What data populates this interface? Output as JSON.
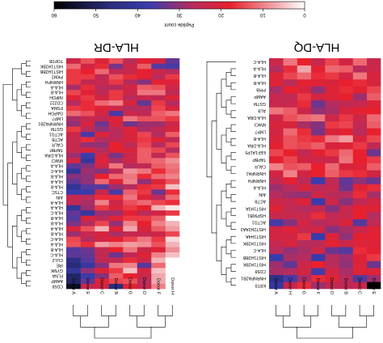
{
  "chart_data": [
    {
      "type": "heatmap",
      "title": "HLA-DR",
      "colorbar": {
        "label": "Peptide count",
        "ticks": [
          "0",
          "10",
          "20",
          "30",
          "40",
          "50",
          "60"
        ],
        "range": [
          0,
          60
        ],
        "colors": [
          "#ffffff",
          "#e8202d",
          "#3a3cae",
          "#000000"
        ]
      },
      "rows": [
        "CD58",
        "AAMP",
        "FLNA",
        "GYMK",
        "IRE",
        "CUL2",
        "HLA-C",
        "HLA-B",
        "HLA-A",
        "HLA-C",
        "HLA-B",
        "HLA-A",
        "HLA-B",
        "HLA-B",
        "HLA-C",
        "HLA-A",
        "HLA-A",
        "AIN",
        "CTSC",
        "HLA-B",
        "HLA-A",
        "HLA-B",
        "HLA-C",
        "HLA-A",
        "MWCI",
        "HLA-DRA",
        "TAPBP",
        "CALR",
        "ACTB",
        "ACTG1",
        "GSTM",
        "HNRNPA2B1",
        "LMP7",
        "GAPDH",
        "PSMA",
        "CD222",
        "IMPDH",
        "HLA-B",
        "HLA-A",
        "HNRNPH",
        "PKM2",
        "HIST1H2BB",
        "HIST1H2BK",
        "TOP2B"
      ],
      "columns": [
        "Donor H",
        "Donor F",
        "Donor D",
        "Donor G",
        "Donor B",
        "Donor C",
        "Donor E",
        "Donor A"
      ],
      "values": [
        [
          0,
          10,
          24,
          19,
          46,
          22,
          24,
          56
        ],
        [
          0,
          7,
          26,
          14,
          15,
          20,
          34,
          49
        ],
        [
          0,
          7,
          24,
          18,
          13,
          31,
          38,
          49
        ],
        [
          0,
          5,
          21,
          5,
          16,
          20,
          30,
          41
        ],
        [
          0,
          12,
          35,
          10,
          11,
          31,
          40,
          47
        ],
        [
          0,
          6,
          23,
          17,
          25,
          25,
          35,
          45
        ],
        [
          5,
          10,
          20,
          25,
          33,
          25,
          34,
          34
        ],
        [
          9,
          20,
          23,
          11,
          18,
          25,
          33,
          35
        ],
        [
          6,
          14,
          9,
          8,
          10,
          8,
          17,
          14
        ],
        [
          3,
          16,
          11,
          15,
          19,
          22,
          27,
          15
        ],
        [
          15,
          23,
          24,
          24,
          28,
          21,
          24,
          29
        ],
        [
          8,
          13,
          21,
          7,
          20,
          6,
          14,
          21
        ],
        [
          6,
          10,
          18,
          10,
          30,
          15,
          27,
          32
        ],
        [
          0,
          13,
          16,
          16,
          20,
          26,
          21,
          35
        ],
        [
          16,
          22,
          26,
          19,
          29,
          29,
          40,
          34
        ],
        [
          2,
          6,
          18,
          16,
          21,
          16,
          29,
          41
        ],
        [
          17,
          15,
          12,
          14,
          23,
          10,
          28,
          25
        ],
        [
          12,
          26,
          20,
          11,
          17,
          17,
          26,
          24
        ],
        [
          17,
          33,
          16,
          13,
          36,
          24,
          38,
          38
        ],
        [
          5,
          16,
          17,
          27,
          29,
          35,
          35,
          42
        ],
        [
          14,
          20,
          30,
          10,
          20,
          12,
          30,
          34
        ],
        [
          10,
          12,
          17,
          11,
          12,
          18,
          30,
          31
        ],
        [
          12,
          17,
          11,
          9,
          25,
          31,
          29,
          41
        ],
        [
          11,
          13,
          25,
          27,
          11,
          23,
          31,
          34
        ],
        [
          9,
          12,
          13,
          23,
          28,
          20,
          40,
          22
        ],
        [
          14,
          25,
          13,
          23,
          32,
          22,
          37,
          29
        ],
        [
          27,
          15,
          13,
          21,
          19,
          27,
          21,
          24
        ],
        [
          15,
          27,
          15,
          26,
          18,
          30,
          30,
          24
        ],
        [
          25,
          20,
          16,
          21,
          25,
          27,
          17,
          24
        ],
        [
          13,
          27,
          15,
          21,
          27,
          20,
          36,
          23
        ],
        [
          21,
          25,
          28,
          20,
          26,
          30,
          26,
          16
        ],
        [
          23,
          29,
          29,
          33,
          21,
          33,
          21,
          30
        ],
        [
          16,
          14,
          14,
          11,
          20,
          25,
          24,
          28
        ],
        [
          11,
          13,
          25,
          23,
          36,
          22,
          14,
          12
        ],
        [
          21,
          15,
          27,
          27,
          23,
          20,
          17,
          16
        ],
        [
          27,
          16,
          34,
          21,
          10,
          12,
          17,
          27
        ],
        [
          20,
          25,
          24,
          26,
          16,
          22,
          16,
          20
        ],
        [
          25,
          11,
          11,
          23,
          16,
          25,
          20,
          15
        ],
        [
          23,
          14,
          13,
          22,
          27,
          26,
          17,
          28
        ],
        [
          20,
          19,
          31,
          27,
          16,
          24,
          25,
          16
        ],
        [
          16,
          26,
          19,
          17,
          14,
          25,
          16,
          16
        ],
        [
          27,
          23,
          18,
          24,
          25,
          12,
          18,
          16
        ],
        [
          36,
          35,
          13,
          23,
          32,
          17,
          22,
          12
        ],
        [
          34,
          22,
          19,
          26,
          14,
          20,
          14,
          23
        ]
      ]
    },
    {
      "type": "heatmap",
      "title": "HLA-DQ",
      "colorbar": {
        "label": "Peptide count",
        "ticks": [
          "0",
          "10",
          "20",
          "30",
          "40",
          "50",
          "60"
        ],
        "range": [
          0,
          60
        ],
        "colors": [
          "#ffffff",
          "#e8202d",
          "#3a3cae",
          "#000000"
        ]
      },
      "rows": [
        "KRT8",
        "HNRNPA2B1",
        "CD58",
        "HIST1H2BK",
        "HIST1H2BB",
        "HLA-C",
        "HIST1H2BK",
        "HIST1H4A",
        "HIST2H2AA3",
        "ACTG1",
        "HSP90B1",
        "HIST1H3A",
        "ACTB",
        "AIN",
        "HLA-A",
        "HNRNPH",
        "HNRNPA1",
        "CALR",
        "TAPBP",
        "EEF1A1P5",
        "HLA-DRA",
        "HLA-B",
        "LMP7",
        "MWCI",
        "HLA-DRA",
        "ALB",
        "GSTM",
        "AAMP",
        "PPIB",
        "HLA-B",
        "HLA-B",
        "HLA-A",
        "HLA-C"
      ],
      "columns": [
        "Donor E",
        "Donor C",
        "Donor B",
        "Donor D",
        "Donor F",
        "Donor G",
        "Donor H",
        "Donor A"
      ],
      "values": [
        [
          60,
          24,
          25,
          25,
          29,
          17,
          24,
          40
        ],
        [
          29,
          35,
          26,
          20,
          17,
          28,
          36,
          44
        ],
        [
          20,
          20,
          28,
          22,
          36,
          22,
          27,
          28
        ],
        [
          33,
          20,
          30,
          26,
          18,
          23,
          34,
          29
        ],
        [
          16,
          20,
          29,
          27,
          38,
          27,
          28,
          38
        ],
        [
          19,
          17,
          35,
          33,
          23,
          28,
          30,
          26
        ],
        [
          20,
          20,
          23,
          19,
          26,
          27,
          21,
          24
        ],
        [
          19,
          19,
          30,
          20,
          38,
          16,
          22,
          22
        ],
        [
          20,
          24,
          28,
          31,
          22,
          24,
          20,
          22
        ],
        [
          25,
          35,
          21,
          25,
          27,
          22,
          31,
          36
        ],
        [
          27,
          18,
          24,
          25,
          17,
          24,
          24,
          24
        ],
        [
          20,
          19,
          24,
          31,
          25,
          27,
          25,
          20
        ],
        [
          22,
          25,
          31,
          23,
          38,
          20,
          24,
          23
        ],
        [
          28,
          17,
          27,
          26,
          23,
          30,
          29,
          27
        ],
        [
          17,
          20,
          33,
          24,
          26,
          21,
          26,
          29
        ],
        [
          33,
          30,
          34,
          25,
          37,
          26,
          19,
          25
        ],
        [
          22,
          17,
          16,
          13,
          18,
          22,
          10,
          22
        ],
        [
          13,
          20,
          21,
          12,
          18,
          13,
          14,
          10
        ],
        [
          16,
          18,
          11,
          23,
          23,
          22,
          15,
          19
        ],
        [
          33,
          18,
          12,
          16,
          19,
          25,
          18,
          15
        ],
        [
          25,
          16,
          20,
          21,
          13,
          15,
          14,
          19
        ],
        [
          15,
          21,
          8,
          11,
          17,
          16,
          14,
          21
        ],
        [
          18,
          26,
          19,
          21,
          32,
          17,
          12,
          22
        ],
        [
          13,
          25,
          15,
          16,
          31,
          28,
          21,
          21
        ],
        [
          12,
          23,
          16,
          23,
          11,
          12,
          14,
          23
        ],
        [
          18,
          19,
          21,
          28,
          30,
          23,
          13,
          11
        ],
        [
          20,
          24,
          25,
          27,
          33,
          17,
          24,
          24
        ],
        [
          13,
          29,
          18,
          20,
          22,
          16,
          25,
          24
        ],
        [
          15,
          19,
          17,
          20,
          30,
          21,
          18,
          28
        ],
        [
          21,
          17,
          18,
          21,
          20,
          19,
          26,
          20
        ],
        [
          21,
          11,
          22,
          16,
          17,
          12,
          15,
          20
        ],
        [
          23,
          26,
          13,
          12,
          19,
          7,
          17,
          27
        ],
        [
          24,
          12,
          22,
          15,
          24,
          18,
          11,
          23
        ]
      ]
    }
  ]
}
